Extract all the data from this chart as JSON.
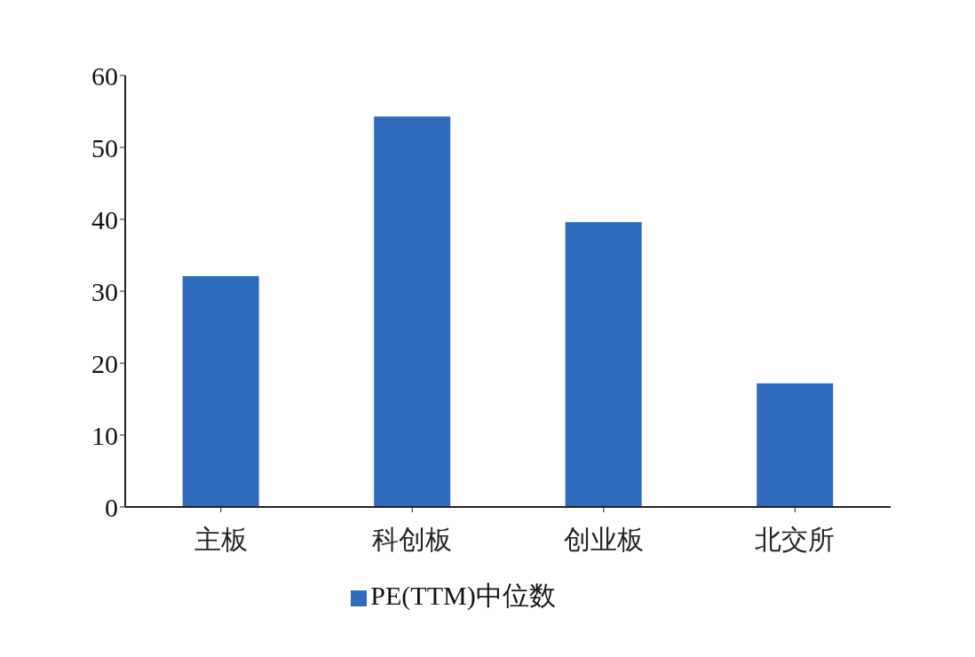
{
  "chart_data": {
    "type": "bar",
    "categories": [
      "主板",
      "科创板",
      "创业板",
      "北交所"
    ],
    "series": [
      {
        "name": "PE(TTM)中位数",
        "color": "#2e6bbd",
        "values": [
          32.1,
          54.3,
          39.6,
          17.2
        ]
      }
    ],
    "ylim": [
      0,
      60
    ],
    "yticks": [
      0,
      10,
      20,
      30,
      40,
      50,
      60
    ],
    "legend": "bottom"
  }
}
